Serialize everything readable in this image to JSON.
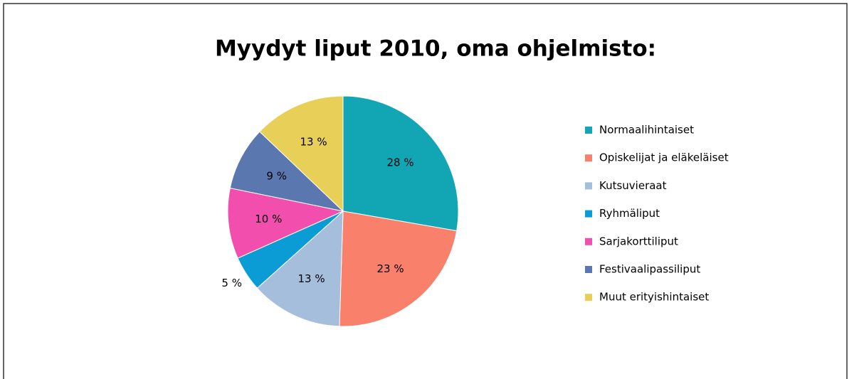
{
  "chart_data": {
    "type": "pie",
    "title": "Myydyt liput 2010, oma ohjelmisto:",
    "categories": [
      "Normaalihintaiset",
      "Opiskelijat ja eläkeläiset",
      "Kutsuvieraat",
      "Ryhmäliput",
      "Sarjakorttiliput",
      "Festivaalipassiliput",
      "Muut erityishintaiset"
    ],
    "values": [
      28,
      23,
      13,
      5,
      10,
      9,
      13
    ],
    "value_labels": [
      "28 %",
      "23 %",
      "13 %",
      "5 %",
      "10 %",
      "9 %",
      "13 %"
    ],
    "colors": [
      "#12a6b5",
      "#f9806a",
      "#a4bedc",
      "#0b9cd6",
      "#f14eae",
      "#5b77b0",
      "#e8cf58"
    ],
    "legend": "right"
  }
}
